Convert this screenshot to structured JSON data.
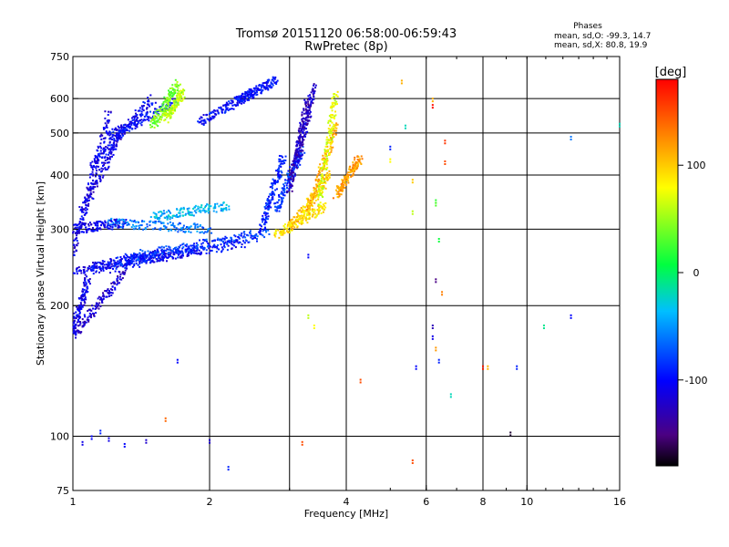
{
  "chart_data": {
    "type": "scatter",
    "title_line1": "Tromsø 20151120 06:58:00-06:59:43",
    "title_line2": "RwPretec (8p)",
    "stats": {
      "heading": "Phases",
      "line_o": "mean, sd,O: -99.3, 14.7",
      "line_x": "mean, sd,X:  80.8, 19.9"
    },
    "xlabel": "Frequency [MHz]",
    "ylabel": "Stationary phase Virtual Height [km]",
    "xscale": "log",
    "yscale": "log",
    "xlim": [
      1,
      16
    ],
    "ylim": [
      75,
      750
    ],
    "xticks": [
      {
        "value": 1,
        "label": "1"
      },
      {
        "value": 2,
        "label": "2"
      },
      {
        "value": 4,
        "label": "4"
      },
      {
        "value": 6,
        "label": "6"
      },
      {
        "value": 8,
        "label": "8"
      },
      {
        "value": 10,
        "label": "10"
      },
      {
        "value": 16,
        "label": "16"
      }
    ],
    "xgrid": [
      2,
      3,
      4,
      6,
      8,
      10
    ],
    "yticks": [
      {
        "value": 75,
        "label": "75"
      },
      {
        "value": 100,
        "label": "100"
      },
      {
        "value": 200,
        "label": "200"
      },
      {
        "value": 300,
        "label": "300"
      },
      {
        "value": 400,
        "label": "400"
      },
      {
        "value": 500,
        "label": "500"
      },
      {
        "value": 600,
        "label": "600"
      },
      {
        "value": 750,
        "label": "750"
      }
    ],
    "ygrid": [
      100,
      200,
      300,
      400,
      500,
      600
    ],
    "colorbar": {
      "label": "[deg]",
      "range": [
        -180,
        180
      ],
      "ticks": [
        {
          "value": 100,
          "label": "100"
        },
        {
          "value": 0,
          "label": "0"
        },
        {
          "value": -100,
          "label": "-100"
        }
      ]
    },
    "grid": true,
    "point_traces": [
      {
        "x": [
          1.0,
          1.6
        ],
        "y": [
          240,
          265
        ],
        "phase": -110
      },
      {
        "x": [
          1.1,
          1.9
        ],
        "y": [
          245,
          268
        ],
        "phase": -105
      },
      {
        "x": [
          1.1,
          2.4
        ],
        "y": [
          240,
          280
        ],
        "phase": -100
      },
      {
        "x": [
          1.2,
          2.6
        ],
        "y": [
          250,
          290
        ],
        "phase": -90
      },
      {
        "x": [
          1.3,
          2.7
        ],
        "y": [
          258,
          295
        ],
        "phase": -80
      },
      {
        "x": [
          1.0,
          1.3
        ],
        "y": [
          300,
          310
        ],
        "phase": -110
      },
      {
        "x": [
          1.2,
          2.0
        ],
        "y": [
          310,
          300
        ],
        "phase": -60
      },
      {
        "x": [
          1.5,
          2.2
        ],
        "y": [
          320,
          340
        ],
        "phase": -40
      },
      {
        "x": [
          1.0,
          1.3
        ],
        "y": [
          170,
          240
        ],
        "phase": -120
      },
      {
        "x": [
          1.0,
          1.08
        ],
        "y": [
          175,
          230
        ],
        "phase": -110
      },
      {
        "x": [
          1.0,
          1.2
        ],
        "y": [
          260,
          560
        ],
        "phase": -110
      },
      {
        "x": [
          1.05,
          1.3
        ],
        "y": [
          330,
          520
        ],
        "phase": -115
      },
      {
        "x": [
          1.1,
          1.5
        ],
        "y": [
          420,
          600
        ],
        "phase": -105
      },
      {
        "x": [
          1.2,
          1.7
        ],
        "y": [
          490,
          590
        ],
        "phase": -100
      },
      {
        "x": [
          1.5,
          1.7
        ],
        "y": [
          520,
          650
        ],
        "phase": 40
      },
      {
        "x": [
          1.6,
          1.75
        ],
        "y": [
          540,
          620
        ],
        "phase": 60
      },
      {
        "x": [
          1.9,
          2.5
        ],
        "y": [
          530,
          620
        ],
        "phase": -100
      },
      {
        "x": [
          2.3,
          2.8
        ],
        "y": [
          590,
          660
        ],
        "phase": -100
      },
      {
        "x": [
          2.6,
          2.9
        ],
        "y": [
          300,
          440
        ],
        "phase": -90
      },
      {
        "x": [
          2.8,
          3.2
        ],
        "y": [
          330,
          460
        ],
        "phase": -85
      },
      {
        "x": [
          3.0,
          3.3
        ],
        "y": [
          370,
          600
        ],
        "phase": -130
      },
      {
        "x": [
          3.1,
          3.4
        ],
        "y": [
          420,
          640
        ],
        "phase": -125
      },
      {
        "x": [
          2.8,
          3.6
        ],
        "y": [
          290,
          340
        ],
        "phase": 90
      },
      {
        "x": [
          3.0,
          3.7
        ],
        "y": [
          300,
          400
        ],
        "phase": 100
      },
      {
        "x": [
          3.3,
          3.8
        ],
        "y": [
          330,
          520
        ],
        "phase": 110
      },
      {
        "x": [
          3.5,
          3.8
        ],
        "y": [
          350,
          620
        ],
        "phase": 70
      },
      {
        "x": [
          3.8,
          4.3
        ],
        "y": [
          360,
          440
        ],
        "phase": 120
      }
    ],
    "scattered_points": [
      {
        "x": 1.05,
        "y": 97,
        "phase": -110
      },
      {
        "x": 1.1,
        "y": 100,
        "phase": -100
      },
      {
        "x": 1.15,
        "y": 103,
        "phase": -90
      },
      {
        "x": 1.2,
        "y": 99,
        "phase": -110
      },
      {
        "x": 1.3,
        "y": 96,
        "phase": -100
      },
      {
        "x": 1.45,
        "y": 98,
        "phase": -120
      },
      {
        "x": 1.6,
        "y": 110,
        "phase": 140
      },
      {
        "x": 1.7,
        "y": 150,
        "phase": -100
      },
      {
        "x": 2.2,
        "y": 85,
        "phase": -90
      },
      {
        "x": 2.0,
        "y": 98,
        "phase": -120
      },
      {
        "x": 3.2,
        "y": 97,
        "phase": 150
      },
      {
        "x": 3.4,
        "y": 180,
        "phase": 80
      },
      {
        "x": 3.3,
        "y": 190,
        "phase": 60
      },
      {
        "x": 3.3,
        "y": 262,
        "phase": -100
      },
      {
        "x": 4.3,
        "y": 135,
        "phase": 150
      },
      {
        "x": 5.6,
        "y": 88,
        "phase": 150
      },
      {
        "x": 5.7,
        "y": 145,
        "phase": -100
      },
      {
        "x": 6.2,
        "y": 170,
        "phase": -110
      },
      {
        "x": 6.2,
        "y": 180,
        "phase": -130
      },
      {
        "x": 6.3,
        "y": 160,
        "phase": 120
      },
      {
        "x": 6.4,
        "y": 150,
        "phase": -90
      },
      {
        "x": 6.3,
        "y": 230,
        "phase": -150
      },
      {
        "x": 6.4,
        "y": 285,
        "phase": 10
      },
      {
        "x": 6.5,
        "y": 215,
        "phase": 130
      },
      {
        "x": 6.3,
        "y": 350,
        "phase": 20
      },
      {
        "x": 6.3,
        "y": 345,
        "phase": 30
      },
      {
        "x": 6.2,
        "y": 580,
        "phase": 175
      },
      {
        "x": 6.2,
        "y": 600,
        "phase": 110
      },
      {
        "x": 6.6,
        "y": 430,
        "phase": 150
      },
      {
        "x": 6.6,
        "y": 480,
        "phase": 160
      },
      {
        "x": 5.4,
        "y": 520,
        "phase": -20
      },
      {
        "x": 5.3,
        "y": 660,
        "phase": 110
      },
      {
        "x": 5.0,
        "y": 435,
        "phase": 80
      },
      {
        "x": 5.0,
        "y": 465,
        "phase": -90
      },
      {
        "x": 6.8,
        "y": 125,
        "phase": -20
      },
      {
        "x": 8.0,
        "y": 145,
        "phase": 170
      },
      {
        "x": 8.2,
        "y": 145,
        "phase": 110
      },
      {
        "x": 9.2,
        "y": 102,
        "phase": -170
      },
      {
        "x": 9.5,
        "y": 145,
        "phase": -90
      },
      {
        "x": 10.9,
        "y": 180,
        "phase": -10
      },
      {
        "x": 12.5,
        "y": 190,
        "phase": -100
      },
      {
        "x": 12.5,
        "y": 490,
        "phase": -60
      },
      {
        "x": 16.0,
        "y": 525,
        "phase": -20
      },
      {
        "x": 5.6,
        "y": 390,
        "phase": 100
      },
      {
        "x": 5.6,
        "y": 330,
        "phase": 60
      }
    ]
  }
}
